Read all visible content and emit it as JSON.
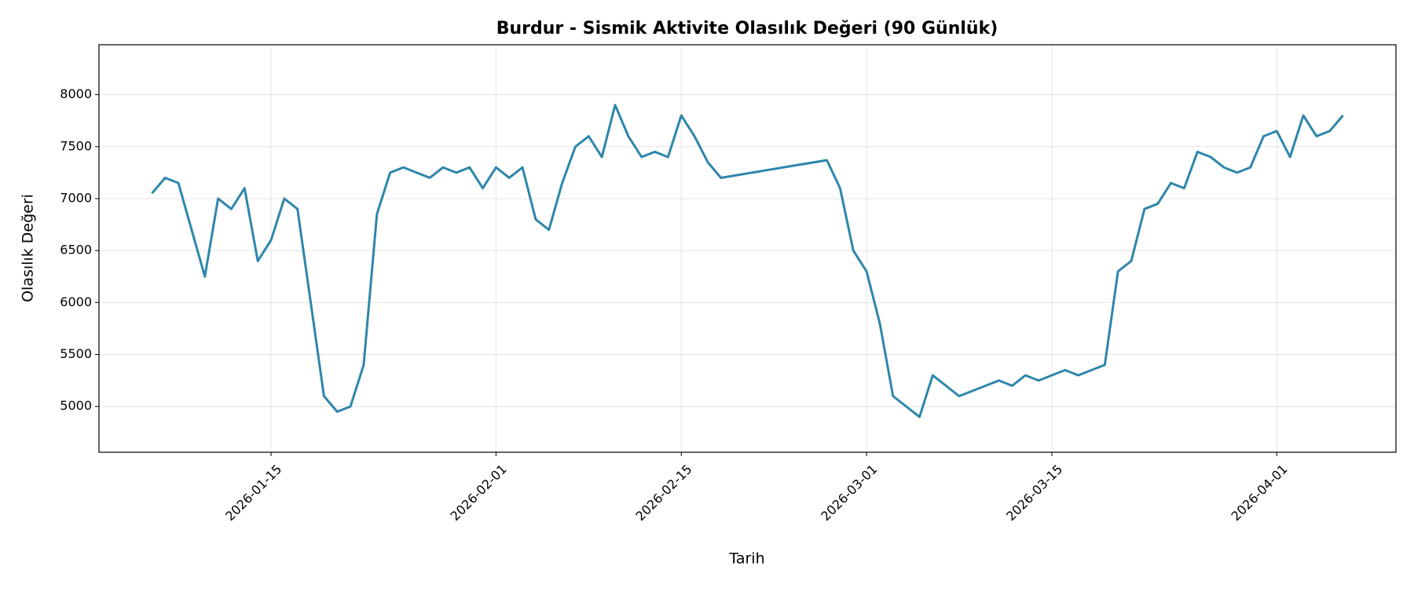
{
  "chart_data": {
    "type": "line",
    "title": "Burdur - Sismik Aktivite Olasılık Değeri (90 Günlük)",
    "xlabel": "Tarih",
    "ylabel": "Olasılık Değeri",
    "x": [
      "2026-01-06",
      "2026-01-07",
      "2026-01-08",
      "2026-01-09",
      "2026-01-10",
      "2026-01-11",
      "2026-01-12",
      "2026-01-13",
      "2026-01-14",
      "2026-01-15",
      "2026-01-16",
      "2026-01-17",
      "2026-01-18",
      "2026-01-19",
      "2026-01-20",
      "2026-01-21",
      "2026-01-22",
      "2026-01-23",
      "2026-01-24",
      "2026-01-25",
      "2026-01-26",
      "2026-01-27",
      "2026-01-28",
      "2026-01-29",
      "2026-01-30",
      "2026-01-31",
      "2026-02-01",
      "2026-02-02",
      "2026-02-03",
      "2026-02-04",
      "2026-02-05",
      "2026-02-06",
      "2026-02-07",
      "2026-02-08",
      "2026-02-09",
      "2026-02-10",
      "2026-02-11",
      "2026-02-12",
      "2026-02-13",
      "2026-02-14",
      "2026-02-15",
      "2026-02-16",
      "2026-02-17",
      "2026-02-18",
      "2026-02-26",
      "2026-02-27",
      "2026-02-28",
      "2026-03-01",
      "2026-03-02",
      "2026-03-03",
      "2026-03-04",
      "2026-03-05",
      "2026-03-06",
      "2026-03-07",
      "2026-03-08",
      "2026-03-09",
      "2026-03-10",
      "2026-03-11",
      "2026-03-12",
      "2026-03-13",
      "2026-03-14",
      "2026-03-15",
      "2026-03-16",
      "2026-03-17",
      "2026-03-18",
      "2026-03-19",
      "2026-03-20",
      "2026-03-21",
      "2026-03-22",
      "2026-03-23",
      "2026-03-24",
      "2026-03-25",
      "2026-03-26",
      "2026-03-27",
      "2026-03-28",
      "2026-03-29",
      "2026-03-30",
      "2026-03-31",
      "2026-04-01",
      "2026-04-02",
      "2026-04-03",
      "2026-04-04",
      "2026-04-05",
      "2026-04-06"
    ],
    "series": [
      {
        "name": "Olasılık Değeri",
        "color": "#2e86ab",
        "values": [
          7050,
          7200,
          7150,
          6700,
          6250,
          7000,
          6900,
          7100,
          6400,
          6600,
          7000,
          6900,
          6000,
          5100,
          4950,
          5000,
          5400,
          6850,
          7250,
          7300,
          7250,
          7200,
          7300,
          7250,
          7300,
          7100,
          7300,
          7200,
          7300,
          6800,
          6700,
          7150,
          7500,
          7600,
          7400,
          7900,
          7600,
          7400,
          7450,
          7400,
          7800,
          7600,
          7350,
          7200,
          7370,
          7100,
          6500,
          6300,
          5800,
          5100,
          5000,
          4900,
          5300,
          5200,
          5100,
          5150,
          5200,
          5250,
          5200,
          5300,
          5250,
          5300,
          5350,
          5300,
          5350,
          5400,
          6300,
          6400,
          6900,
          6950,
          7150,
          7100,
          7450,
          7400,
          7300,
          7250,
          7300,
          7600,
          7650,
          7400,
          7800,
          7600,
          7650,
          7800
        ]
      }
    ],
    "xlim": [
      "2026-01-02",
      "2026-04-10"
    ],
    "xticks": [
      "2026-01-15",
      "2026-02-01",
      "2026-02-15",
      "2026-03-01",
      "2026-03-15",
      "2026-04-01"
    ],
    "ylim": [
      4560,
      8480
    ],
    "yticks": [
      5000,
      5500,
      6000,
      6500,
      7000,
      7500,
      8000
    ],
    "grid": true
  }
}
